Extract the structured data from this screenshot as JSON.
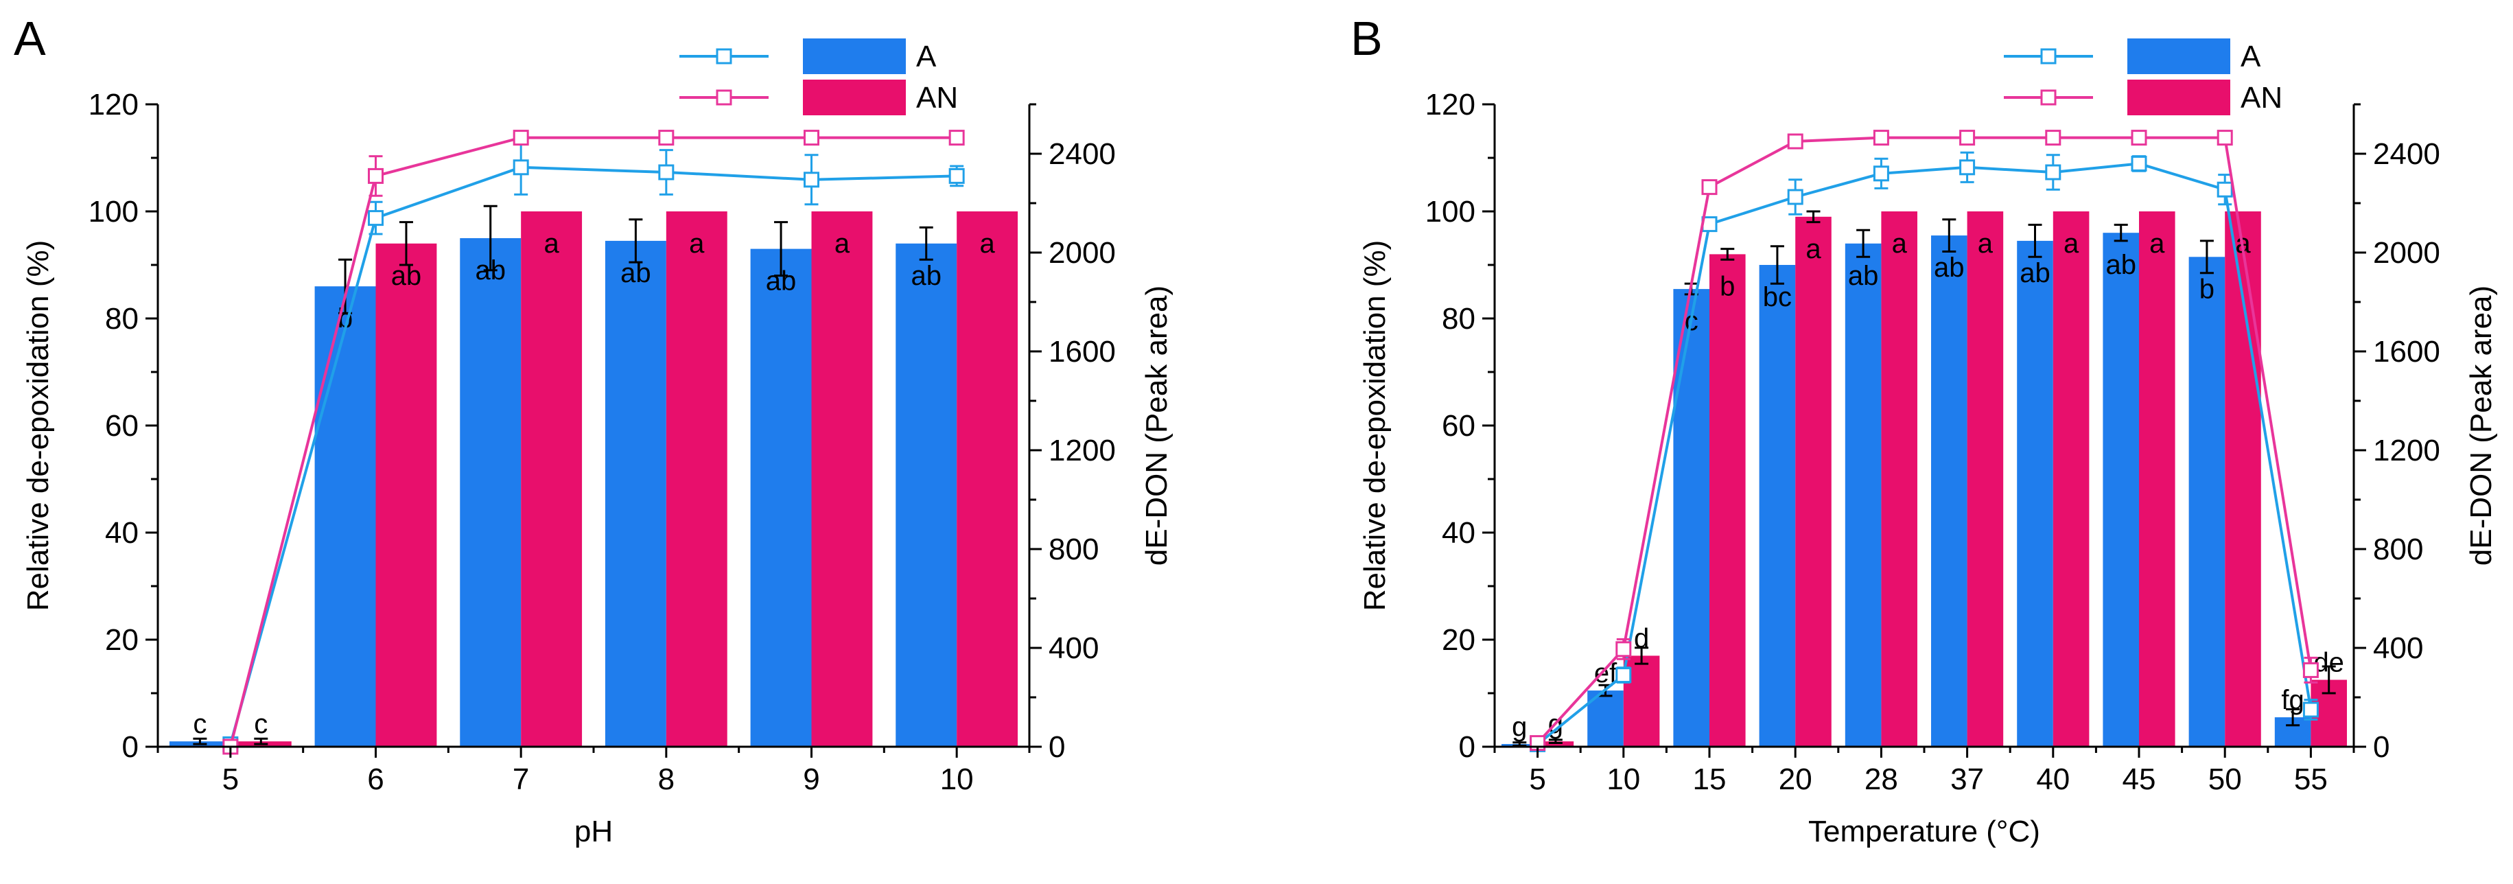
{
  "colors": {
    "A_bar": "#1f7ded",
    "AN_bar": "#e80f6c",
    "A_line": "#20a0e8",
    "AN_line": "#e8359a",
    "axis": "#000000"
  },
  "chart_data": [
    {
      "panel_label": "A",
      "type": "bar",
      "title": "",
      "xlabel": "pH",
      "ylabel": "Relative de-epoxidation (%)",
      "y2label": "dE-DON (Peak area)",
      "ylim": [
        0,
        120
      ],
      "yticks": [
        "0",
        "20",
        "40",
        "60",
        "80",
        "100",
        "120"
      ],
      "y2lim": [
        0,
        2600
      ],
      "y2ticks": [
        "0",
        "400",
        "800",
        "1200",
        "1600",
        "2000",
        "2400"
      ],
      "categories": [
        "5",
        "6",
        "7",
        "8",
        "9",
        "10"
      ],
      "legend_position": "top-right",
      "series": [
        {
          "name": "A",
          "kind": "bar",
          "axis": "left",
          "values": [
            1,
            86,
            95,
            94.5,
            93,
            94
          ],
          "errors": [
            0.5,
            5,
            6,
            4,
            5,
            3
          ],
          "labels": [
            "c",
            "b",
            "ab",
            "ab",
            "ab",
            "ab"
          ]
        },
        {
          "name": "AN",
          "kind": "bar",
          "axis": "left",
          "values": [
            1,
            94,
            100,
            100,
            100,
            100
          ],
          "errors": [
            0.5,
            4,
            0,
            0,
            0,
            0
          ],
          "labels": [
            "c",
            "ab",
            "a",
            "a",
            "a",
            "a"
          ]
        },
        {
          "name": "A",
          "kind": "line",
          "axis": "right",
          "values": [
            10,
            2140,
            2345,
            2325,
            2295,
            2310
          ],
          "errors": [
            0,
            65,
            110,
            90,
            100,
            40
          ]
        },
        {
          "name": "AN",
          "kind": "line",
          "axis": "right",
          "values": [
            0,
            2310,
            2465,
            2465,
            2465,
            2465
          ],
          "errors": [
            0,
            80,
            0,
            0,
            0,
            0
          ]
        }
      ]
    },
    {
      "panel_label": "B",
      "type": "bar",
      "title": "",
      "xlabel": "Temperature (°C)",
      "ylabel": "Relative de-epoxidation (%)",
      "y2label": "dE-DON (Peak area)",
      "ylim": [
        0,
        120
      ],
      "yticks": [
        "0",
        "20",
        "40",
        "60",
        "80",
        "100",
        "120"
      ],
      "y2lim": [
        0,
        2600
      ],
      "y2ticks": [
        "0",
        "400",
        "800",
        "1200",
        "1600",
        "2000",
        "2400"
      ],
      "categories": [
        "5",
        "10",
        "15",
        "20",
        "28",
        "37",
        "40",
        "45",
        "50",
        "55"
      ],
      "legend_position": "top-right",
      "series": [
        {
          "name": "A",
          "kind": "bar",
          "axis": "left",
          "values": [
            0.5,
            10.5,
            85.5,
            90,
            94,
            95.5,
            94.5,
            96,
            91.5,
            5.5
          ],
          "errors": [
            0.3,
            1,
            1,
            3.5,
            2.5,
            3,
            3,
            1.5,
            3,
            1.5
          ],
          "labels": [
            "g",
            "ef",
            "c",
            "bc",
            "ab",
            "ab",
            "ab",
            "ab",
            "b",
            "fg"
          ]
        },
        {
          "name": "AN",
          "kind": "bar",
          "axis": "left",
          "values": [
            1,
            17,
            92,
            99,
            100,
            100,
            100,
            100,
            100,
            12.5
          ],
          "errors": [
            0.3,
            1.5,
            1,
            1,
            0,
            0,
            0,
            0,
            0,
            2.5
          ],
          "labels": [
            "g",
            "d",
            "b",
            "a",
            "a",
            "a",
            "a",
            "a",
            "a",
            "de"
          ]
        },
        {
          "name": "A",
          "kind": "line",
          "axis": "right",
          "values": [
            10,
            290,
            2115,
            2225,
            2320,
            2345,
            2325,
            2360,
            2255,
            150
          ],
          "errors": [
            0,
            30,
            20,
            70,
            60,
            60,
            70,
            30,
            60,
            40
          ]
        },
        {
          "name": "AN",
          "kind": "line",
          "axis": "right",
          "values": [
            15,
            395,
            2265,
            2450,
            2465,
            2465,
            2465,
            2465,
            2465,
            310
          ],
          "errors": [
            0,
            40,
            20,
            25,
            0,
            0,
            0,
            0,
            0,
            50
          ]
        }
      ]
    }
  ]
}
